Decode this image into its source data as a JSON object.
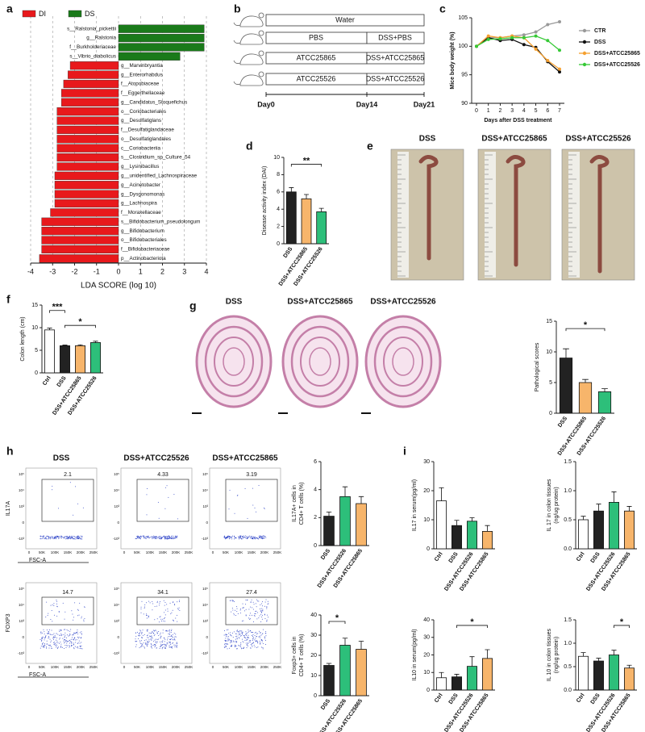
{
  "panel_labels": [
    "a",
    "b",
    "c",
    "d",
    "e",
    "f",
    "g",
    "h",
    "i"
  ],
  "schematic": {
    "rows": [
      [
        "Water"
      ],
      [
        "PBS",
        "DSS+PBS"
      ],
      [
        "ATCC25865",
        "DSS+ATCC25865"
      ],
      [
        "ATCC25526",
        "DSS+ATCC25526"
      ]
    ],
    "days": [
      "Day0",
      "Day14",
      "Day21"
    ]
  },
  "photos": {
    "titles": [
      "DSS",
      "DSS+ATCC25865",
      "DSS+ATCC25526"
    ]
  },
  "histology": {
    "titles": [
      "DSS",
      "DSS+ATCC25865",
      "DSS+ATCC25526"
    ]
  },
  "flow": {
    "titles": [
      "DSS",
      "DSS+ATCC25526",
      "DSS+ATCC25865"
    ],
    "rows": [
      {
        "y_label": "IL17A",
        "gates": [
          "2.1",
          "4.33",
          "3.19"
        ]
      },
      {
        "y_label": "FOXP3",
        "gates": [
          "14.7",
          "34.1",
          "27.4"
        ]
      }
    ],
    "x_label": "FSC-A",
    "x_ticks": [
      "0",
      "50K",
      "100K",
      "150K",
      "200K",
      "250K"
    ],
    "y_ticks": [
      "10⁵",
      "10⁴",
      "10³",
      "0",
      "-10³"
    ]
  },
  "chart_data": [
    {
      "type": "hbar",
      "xlabel": "LDA SCORE (log 10)",
      "categories": [
        "s__Ralstonia_pickettii",
        "g__Ralstonia",
        "f__Burkholderiaceae",
        "s__Vibrio_diabolicus",
        "g__Marvinbryantia",
        "g__Enterorhabdus",
        "f__Atopobiaceae",
        "f__Eggerthellaceae",
        "g__Candidatus_Stoquefichus",
        "o__Coriobacteriales",
        "g__Desulfatiglans",
        "f__Desulfatiglandaceae",
        "o__Desulfatiglandales",
        "c__Coriobacteriia",
        "s__Clostridium_sp_Culture_54",
        "g__Lysinibacillus",
        "g__unidentified_Lachnospiraceae",
        "g__Acinetobacter",
        "g__Dysgonomonas",
        "g__Lachnospira",
        "f__Moraxellaceae",
        "s__Bifidobacterium_pseudolongum",
        "g__Bifidobacterium",
        "o__Bifidobacteriales",
        "f__Bifidobacteriaceae",
        "p__Actinobacteriota"
      ],
      "series": [
        {
          "name": "DI",
          "color": "#e8191c",
          "values": [
            null,
            null,
            null,
            null,
            -2.2,
            -2.3,
            -2.5,
            -2.6,
            -2.6,
            -2.8,
            -2.8,
            -2.8,
            -2.8,
            -2.8,
            -2.8,
            -2.8,
            -2.9,
            -2.9,
            -2.9,
            -2.9,
            -3.1,
            -3.5,
            -3.5,
            -3.5,
            -3.5,
            -3.6
          ]
        },
        {
          "name": "DS",
          "color": "#1a7a1a",
          "values": [
            3.9,
            3.9,
            3.9,
            2.8,
            null,
            null,
            null,
            null,
            null,
            null,
            null,
            null,
            null,
            null,
            null,
            null,
            null,
            null,
            null,
            null,
            null,
            null,
            null,
            null,
            null,
            null
          ]
        }
      ],
      "xlim": [
        -4,
        4
      ],
      "xticks": [
        -4,
        -3,
        -2,
        -1,
        0,
        1,
        2,
        3,
        4
      ],
      "grid": true,
      "legend": "top-left"
    },
    {
      "type": "line",
      "xlabel": "Days after DSS treatment",
      "ylabel": "Mice body weight (%)",
      "x": [
        0,
        1,
        2,
        3,
        4,
        5,
        6,
        7
      ],
      "series": [
        {
          "name": "CTR",
          "color": "#999999",
          "values": [
            100,
            101.5,
            101.5,
            101.8,
            102,
            102.5,
            103.8,
            104.3
          ]
        },
        {
          "name": "DSS",
          "color": "#111111",
          "values": [
            100,
            101.5,
            101,
            101.2,
            100.3,
            99.8,
            97.3,
            95.5
          ]
        },
        {
          "name": "DSS+ATCC25865",
          "color": "#f5a030",
          "values": [
            100,
            101.8,
            101.5,
            101.8,
            101.5,
            99.5,
            97.5,
            96
          ]
        },
        {
          "name": "DSS+ATCC25526",
          "color": "#36c936",
          "values": [
            100,
            101.2,
            101.3,
            101.5,
            101.5,
            101.8,
            101,
            99.3
          ]
        }
      ],
      "xlim": [
        0,
        7
      ],
      "xticks": [
        0,
        1,
        2,
        3,
        4,
        5,
        6,
        7
      ],
      "ylim": [
        90,
        105
      ],
      "yticks": [
        90,
        95,
        100,
        105
      ],
      "legend": "right"
    },
    {
      "type": "bar",
      "ylabel": [
        "Disease activity index (DAI)"
      ],
      "categories": [
        "DSS",
        "DSS+ATCC25865",
        "DSS+ATCC25526"
      ],
      "values": [
        6.0,
        5.2,
        3.7
      ],
      "errors": [
        0.5,
        0.5,
        0.4
      ],
      "colors": [
        "#222222",
        "#f7b56b",
        "#2dbf7a"
      ],
      "ylim": [
        0,
        10
      ],
      "yticks": [
        0,
        2,
        4,
        6,
        8,
        10
      ],
      "annotations": [
        {
          "text": "**",
          "between": [
            "DSS",
            "DSS+ATCC25526"
          ]
        }
      ]
    },
    {
      "type": "bar",
      "ylabel": [
        "Colon length (cm)"
      ],
      "categories": [
        "Ctrl",
        "DSS",
        "DSS+ATCC25865",
        "DSS+ATCC25526"
      ],
      "values": [
        9.5,
        6.0,
        6.0,
        6.7
      ],
      "errors": [
        0.4,
        0.15,
        0.2,
        0.3
      ],
      "colors": [
        "#ffffff",
        "#222222",
        "#f7b56b",
        "#2dbf7a"
      ],
      "ylim": [
        0,
        15
      ],
      "yticks": [
        0,
        5,
        10,
        15
      ],
      "annotations": [
        {
          "text": "***",
          "between": [
            "Ctrl",
            "DSS"
          ]
        },
        {
          "text": "*",
          "between": [
            "DSS",
            "DSS+ATCC25526"
          ]
        }
      ]
    },
    {
      "type": "bar",
      "ylabel": [
        "Pathological scores"
      ],
      "categories": [
        "DSS",
        "DSS+ATCC25865",
        "DSS+ATCC25526"
      ],
      "values": [
        9,
        5,
        3.5
      ],
      "errors": [
        1.5,
        0.5,
        0.5
      ],
      "colors": [
        "#222222",
        "#f7b56b",
        "#2dbf7a"
      ],
      "ylim": [
        0,
        15
      ],
      "yticks": [
        0,
        5,
        10,
        15
      ],
      "annotations": [
        {
          "text": "*",
          "between": [
            "DSS",
            "DSS+ATCC25526"
          ]
        }
      ]
    },
    {
      "type": "bar",
      "ylabel": [
        "IL17A+ cells in",
        "CD4+ T cells (%)"
      ],
      "categories": [
        "DSS",
        "DSS+ATCC25526",
        "DSS+ATCC25865"
      ],
      "values": [
        2.1,
        3.5,
        3.0
      ],
      "errors": [
        0.3,
        0.7,
        0.5
      ],
      "colors": [
        "#222222",
        "#2dbf7a",
        "#f7b56b"
      ],
      "ylim": [
        0,
        6
      ],
      "yticks": [
        0,
        2,
        4,
        6
      ]
    },
    {
      "type": "bar",
      "ylabel": [
        "Foxp3+ cells in",
        "CD4+ T cells (%)"
      ],
      "categories": [
        "DSS",
        "DSS+ATCC25526",
        "DSS+ATCC25865"
      ],
      "values": [
        15,
        25,
        23
      ],
      "errors": [
        1,
        3.5,
        4
      ],
      "colors": [
        "#222222",
        "#2dbf7a",
        "#f7b56b"
      ],
      "ylim": [
        0,
        40
      ],
      "yticks": [
        0,
        10,
        20,
        30,
        40
      ],
      "annotations": [
        {
          "text": "*",
          "between": [
            "DSS",
            "DSS+ATCC25526"
          ]
        }
      ]
    },
    {
      "type": "bar",
      "ylabel": [
        "IL17 in serum(pg/ml)"
      ],
      "categories": [
        "Ctrl",
        "DSS",
        "DSS+ATCC25526",
        "DSS+ATCC25865"
      ],
      "values": [
        16.5,
        8,
        9.5,
        6
      ],
      "errors": [
        4.5,
        1.8,
        1.2,
        2
      ],
      "colors": [
        "#ffffff",
        "#222222",
        "#2dbf7a",
        "#f7b56b"
      ],
      "ylim": [
        0,
        30
      ],
      "yticks": [
        0,
        10,
        20,
        30
      ]
    },
    {
      "type": "bar",
      "ylabel": [
        "IL 17 in colon tissues",
        "(ng/ug protein)"
      ],
      "categories": [
        "Ctrl",
        "DSS",
        "DSS+ATCC25526",
        "DSS+ATCC25865"
      ],
      "values": [
        0.5,
        0.65,
        0.8,
        0.65
      ],
      "errors": [
        0.06,
        0.12,
        0.18,
        0.08
      ],
      "colors": [
        "#ffffff",
        "#222222",
        "#2dbf7a",
        "#f7b56b"
      ],
      "ylim": [
        0,
        1.5
      ],
      "yticks": [
        {
          "value": 0,
          "label": "0.0"
        },
        0.5,
        {
          "value": 1,
          "label": "1.0"
        },
        1.5
      ]
    },
    {
      "type": "bar",
      "ylabel": [
        "IL10 in serum(pg/ml)"
      ],
      "categories": [
        "Ctrl",
        "DSS",
        "DSS+ATCC25526",
        "DSS+ATCC25865"
      ],
      "values": [
        7,
        7.5,
        13.5,
        18
      ],
      "errors": [
        3,
        1.5,
        5.5,
        5
      ],
      "colors": [
        "#ffffff",
        "#222222",
        "#2dbf7a",
        "#f7b56b"
      ],
      "ylim": [
        0,
        40
      ],
      "yticks": [
        0,
        10,
        20,
        30,
        40
      ],
      "annotations": [
        {
          "text": "*",
          "between": [
            "DSS",
            "DSS+ATCC25865"
          ]
        }
      ]
    },
    {
      "type": "bar",
      "ylabel": [
        "IL 10 in colon tissues",
        "(ng/ug protein)"
      ],
      "categories": [
        "Ctrl",
        "DSS",
        "DSS+ATCC25526",
        "DSS+ATCC25865"
      ],
      "values": [
        0.72,
        0.62,
        0.75,
        0.47
      ],
      "errors": [
        0.08,
        0.06,
        0.1,
        0.06
      ],
      "colors": [
        "#ffffff",
        "#222222",
        "#2dbf7a",
        "#f7b56b"
      ],
      "ylim": [
        0,
        1.5
      ],
      "yticks": [
        {
          "value": 0,
          "label": "0.0"
        },
        0.5,
        {
          "value": 1,
          "label": "1.0"
        },
        1.5
      ],
      "annotations": [
        {
          "text": "*",
          "between": [
            "DSS+ATCC25526",
            "DSS+ATCC25865"
          ]
        }
      ]
    }
  ]
}
